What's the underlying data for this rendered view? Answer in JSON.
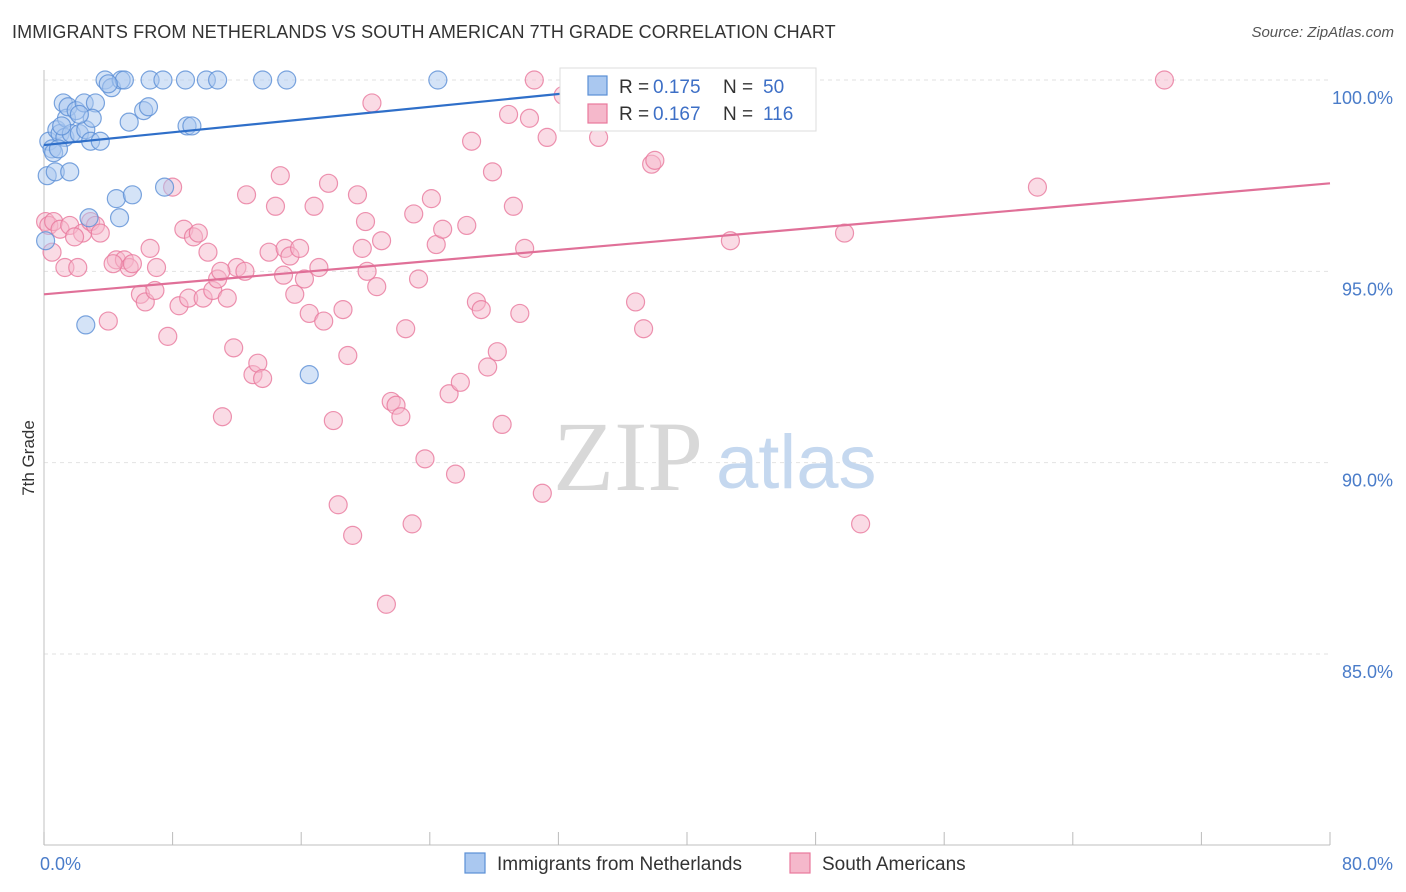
{
  "title": "IMMIGRANTS FROM NETHERLANDS VS SOUTH AMERICAN 7TH GRADE CORRELATION CHART",
  "source": "Source: ZipAtlas.com",
  "watermark": {
    "zip": "ZIP",
    "atlas": "atlas"
  },
  "colors": {
    "blue": "#5b8fd6",
    "blue_fill": "#aac8f0",
    "pink": "#e8789c",
    "pink_fill": "#f5b8cb",
    "tick_text": "#4a7cc9",
    "grid": "#e2e2e2"
  },
  "legend": {
    "rows": [
      {
        "r_label": "R =",
        "r_value": "0.175",
        "n_label": "N =",
        "n_value": "50"
      },
      {
        "r_label": "R =",
        "r_value": "0.167",
        "n_label": "N =",
        "n_value": "116"
      }
    ]
  },
  "chart_data": {
    "type": "scatter",
    "title": "IMMIGRANTS FROM NETHERLANDS VS SOUTH AMERICAN 7TH GRADE CORRELATION CHART",
    "xlabel": "",
    "ylabel": "7th Grade",
    "xlim": [
      0,
      80
    ],
    "ylim": [
      80.5,
      100.6
    ],
    "x_tick_labels": [
      "0.0%",
      "80.0%"
    ],
    "y_tick_labels": [
      "100.0%",
      "95.0%",
      "90.0%",
      "85.0%"
    ],
    "y_ticks": [
      100,
      95,
      90,
      85
    ],
    "grid": true,
    "legend_position": "top-center",
    "series": [
      {
        "name": "Immigrants from Netherlands",
        "color": "#5b8fd6",
        "trend": {
          "x": [
            0,
            36
          ],
          "y": [
            98.3,
            99.8
          ]
        },
        "points": [
          [
            0.1,
            95.8
          ],
          [
            0.2,
            97.5
          ],
          [
            0.3,
            98.4
          ],
          [
            0.5,
            98.2
          ],
          [
            0.7,
            97.6
          ],
          [
            0.8,
            98.7
          ],
          [
            1.0,
            98.6
          ],
          [
            1.2,
            99.4
          ],
          [
            1.3,
            98.5
          ],
          [
            1.4,
            99.0
          ],
          [
            1.5,
            99.3
          ],
          [
            1.6,
            97.6
          ],
          [
            1.7,
            98.6
          ],
          [
            2.0,
            99.2
          ],
          [
            2.2,
            98.6
          ],
          [
            2.5,
            99.4
          ],
          [
            2.6,
            98.7
          ],
          [
            2.8,
            96.4
          ],
          [
            2.9,
            98.4
          ],
          [
            3.2,
            99.4
          ],
          [
            3.5,
            98.4
          ],
          [
            3.8,
            100.0
          ],
          [
            4.2,
            99.8
          ],
          [
            4.5,
            96.9
          ],
          [
            4.7,
            96.4
          ],
          [
            4.8,
            100.0
          ],
          [
            5.0,
            100.0
          ],
          [
            5.3,
            98.9
          ],
          [
            5.5,
            97.0
          ],
          [
            6.2,
            99.2
          ],
          [
            6.5,
            99.3
          ],
          [
            6.6,
            100.0
          ],
          [
            7.4,
            100.0
          ],
          [
            7.5,
            97.2
          ],
          [
            8.8,
            100.0
          ],
          [
            8.9,
            98.8
          ],
          [
            9.2,
            98.8
          ],
          [
            10.1,
            100.0
          ],
          [
            10.8,
            100.0
          ],
          [
            13.6,
            100.0
          ],
          [
            15.1,
            100.0
          ],
          [
            16.5,
            92.3
          ],
          [
            24.5,
            100.0
          ],
          [
            2.6,
            93.6
          ],
          [
            0.6,
            98.1
          ],
          [
            1.1,
            98.8
          ],
          [
            3.0,
            99.0
          ],
          [
            4.0,
            99.9
          ],
          [
            0.9,
            98.2
          ],
          [
            2.2,
            99.1
          ]
        ]
      },
      {
        "name": "South Americans",
        "color": "#e8789c",
        "trend": {
          "x": [
            0,
            80
          ],
          "y": [
            94.4,
            97.3
          ]
        },
        "points": [
          [
            0.1,
            96.3
          ],
          [
            0.3,
            96.2
          ],
          [
            0.6,
            96.3
          ],
          [
            1.0,
            96.1
          ],
          [
            1.3,
            95.1
          ],
          [
            1.6,
            96.2
          ],
          [
            2.1,
            95.1
          ],
          [
            2.4,
            96.0
          ],
          [
            2.9,
            96.3
          ],
          [
            3.2,
            96.2
          ],
          [
            3.5,
            96.0
          ],
          [
            4.0,
            93.7
          ],
          [
            4.5,
            95.3
          ],
          [
            5.0,
            95.3
          ],
          [
            5.3,
            95.1
          ],
          [
            5.5,
            95.2
          ],
          [
            6.0,
            94.4
          ],
          [
            6.3,
            94.2
          ],
          [
            6.6,
            95.6
          ],
          [
            6.9,
            94.5
          ],
          [
            7.0,
            95.1
          ],
          [
            7.7,
            93.3
          ],
          [
            8.0,
            97.2
          ],
          [
            8.4,
            94.1
          ],
          [
            8.7,
            96.1
          ],
          [
            9.0,
            94.3
          ],
          [
            9.3,
            95.9
          ],
          [
            9.6,
            96.0
          ],
          [
            9.9,
            94.3
          ],
          [
            10.2,
            95.5
          ],
          [
            10.5,
            94.5
          ],
          [
            10.8,
            94.8
          ],
          [
            11.1,
            91.2
          ],
          [
            11.4,
            94.3
          ],
          [
            11.8,
            93.0
          ],
          [
            12.0,
            95.1
          ],
          [
            12.5,
            95.0
          ],
          [
            12.6,
            97.0
          ],
          [
            13.0,
            92.3
          ],
          [
            13.3,
            92.6
          ],
          [
            13.6,
            92.2
          ],
          [
            14.0,
            95.5
          ],
          [
            14.4,
            96.7
          ],
          [
            14.7,
            97.5
          ],
          [
            15.0,
            95.6
          ],
          [
            15.3,
            95.4
          ],
          [
            15.6,
            94.4
          ],
          [
            15.9,
            95.6
          ],
          [
            16.2,
            94.8
          ],
          [
            16.5,
            93.9
          ],
          [
            16.8,
            96.7
          ],
          [
            17.1,
            95.1
          ],
          [
            17.4,
            93.7
          ],
          [
            17.7,
            97.3
          ],
          [
            18.0,
            91.1
          ],
          [
            18.3,
            88.9
          ],
          [
            18.6,
            94.0
          ],
          [
            18.9,
            92.8
          ],
          [
            19.2,
            88.1
          ],
          [
            19.5,
            97.0
          ],
          [
            19.8,
            95.6
          ],
          [
            20.1,
            95.0
          ],
          [
            20.4,
            99.4
          ],
          [
            20.7,
            94.6
          ],
          [
            21.0,
            95.8
          ],
          [
            21.3,
            86.3
          ],
          [
            21.6,
            91.6
          ],
          [
            21.9,
            91.5
          ],
          [
            22.2,
            91.2
          ],
          [
            22.5,
            93.5
          ],
          [
            22.9,
            88.4
          ],
          [
            23.3,
            94.8
          ],
          [
            23.7,
            90.1
          ],
          [
            24.1,
            96.9
          ],
          [
            24.4,
            95.7
          ],
          [
            24.8,
            96.1
          ],
          [
            25.2,
            91.8
          ],
          [
            25.6,
            89.7
          ],
          [
            25.9,
            92.1
          ],
          [
            26.3,
            96.2
          ],
          [
            26.6,
            98.4
          ],
          [
            26.9,
            94.2
          ],
          [
            27.2,
            94.0
          ],
          [
            27.6,
            92.5
          ],
          [
            27.9,
            97.6
          ],
          [
            28.2,
            92.9
          ],
          [
            28.5,
            91.0
          ],
          [
            28.9,
            99.1
          ],
          [
            29.2,
            96.7
          ],
          [
            29.6,
            93.9
          ],
          [
            29.9,
            95.6
          ],
          [
            30.2,
            99.0
          ],
          [
            30.5,
            100.0
          ],
          [
            31.0,
            89.2
          ],
          [
            31.3,
            98.5
          ],
          [
            32.3,
            99.6
          ],
          [
            33.0,
            100.0
          ],
          [
            34.1,
            100.0
          ],
          [
            34.5,
            98.5
          ],
          [
            35.6,
            99.4
          ],
          [
            36.8,
            94.2
          ],
          [
            37.3,
            93.5
          ],
          [
            37.8,
            97.8
          ],
          [
            38.0,
            97.9
          ],
          [
            42.7,
            95.8
          ],
          [
            49.8,
            96.0
          ],
          [
            50.8,
            88.4
          ],
          [
            61.8,
            97.2
          ],
          [
            69.7,
            100.0
          ],
          [
            0.5,
            95.5
          ],
          [
            1.9,
            95.9
          ],
          [
            4.3,
            95.2
          ],
          [
            11.0,
            95.0
          ],
          [
            14.9,
            94.9
          ],
          [
            20.0,
            96.3
          ],
          [
            23.0,
            96.5
          ]
        ]
      }
    ]
  },
  "bottom_legend": {
    "items": [
      {
        "label": "Immigrants from Netherlands"
      },
      {
        "label": "South Americans"
      }
    ]
  }
}
